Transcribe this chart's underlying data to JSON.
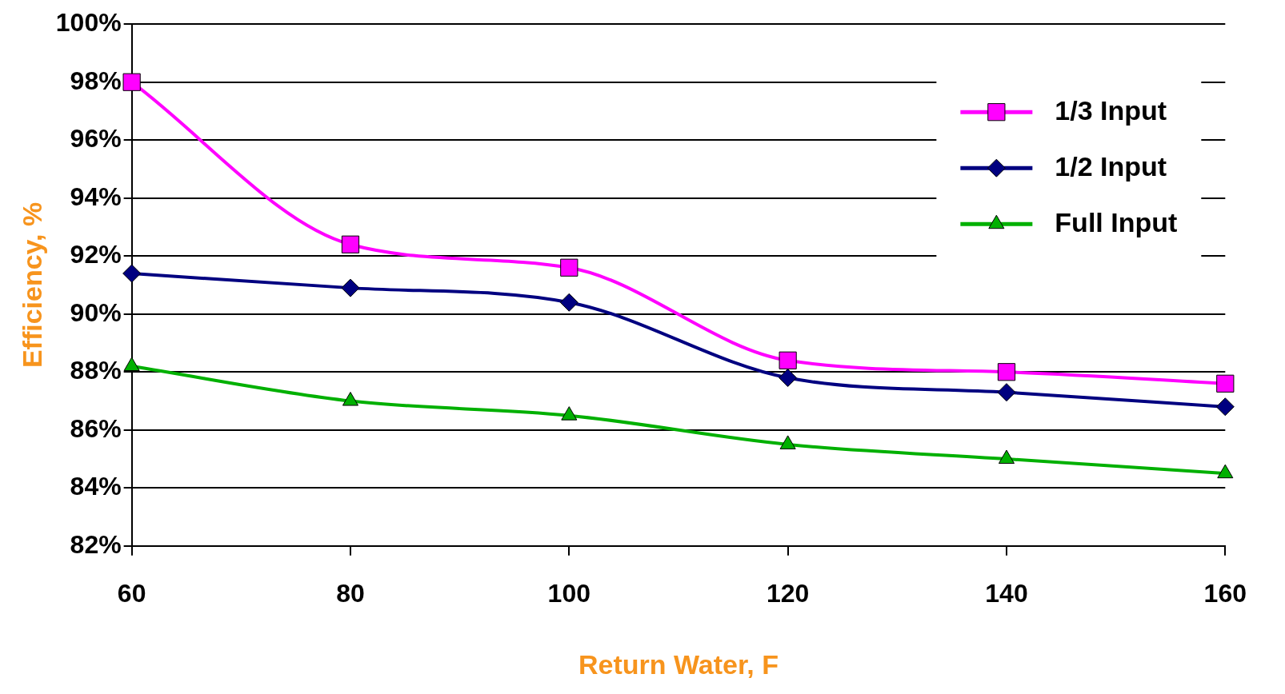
{
  "chart_data": {
    "type": "line",
    "xlabel": "Return Water, F",
    "ylabel": "Efficiency, %",
    "x": [
      60,
      80,
      100,
      120,
      140,
      160
    ],
    "xlim": [
      60,
      160
    ],
    "xticks": [
      60,
      80,
      100,
      120,
      140,
      160
    ],
    "ylim": [
      82,
      100
    ],
    "yticks": [
      {
        "value": 82,
        "label": "82%"
      },
      {
        "value": 84,
        "label": "84%"
      },
      {
        "value": 86,
        "label": "86%"
      },
      {
        "value": 88,
        "label": "88%"
      },
      {
        "value": 90,
        "label": "90%"
      },
      {
        "value": 92,
        "label": "92%"
      },
      {
        "value": 94,
        "label": "94%"
      },
      {
        "value": 96,
        "label": "96%"
      },
      {
        "value": 98,
        "label": "98%"
      },
      {
        "value": 100,
        "label": "100%"
      }
    ],
    "grid": "y",
    "legend": "top right",
    "series": [
      {
        "name": "1/3 Input",
        "color": "#ff00ff",
        "marker": "square",
        "values": [
          98,
          92.4,
          91.6,
          88.4,
          88.0,
          87.6
        ]
      },
      {
        "name": "1/2 Input",
        "color": "#000080",
        "marker": "diamond",
        "values": [
          91.4,
          90.9,
          90.4,
          87.8,
          87.3,
          86.8
        ]
      },
      {
        "name": "Full Input",
        "color": "#00b000",
        "marker": "triangle",
        "values": [
          88.2,
          87.0,
          86.5,
          85.5,
          85.0,
          84.5
        ]
      }
    ]
  }
}
